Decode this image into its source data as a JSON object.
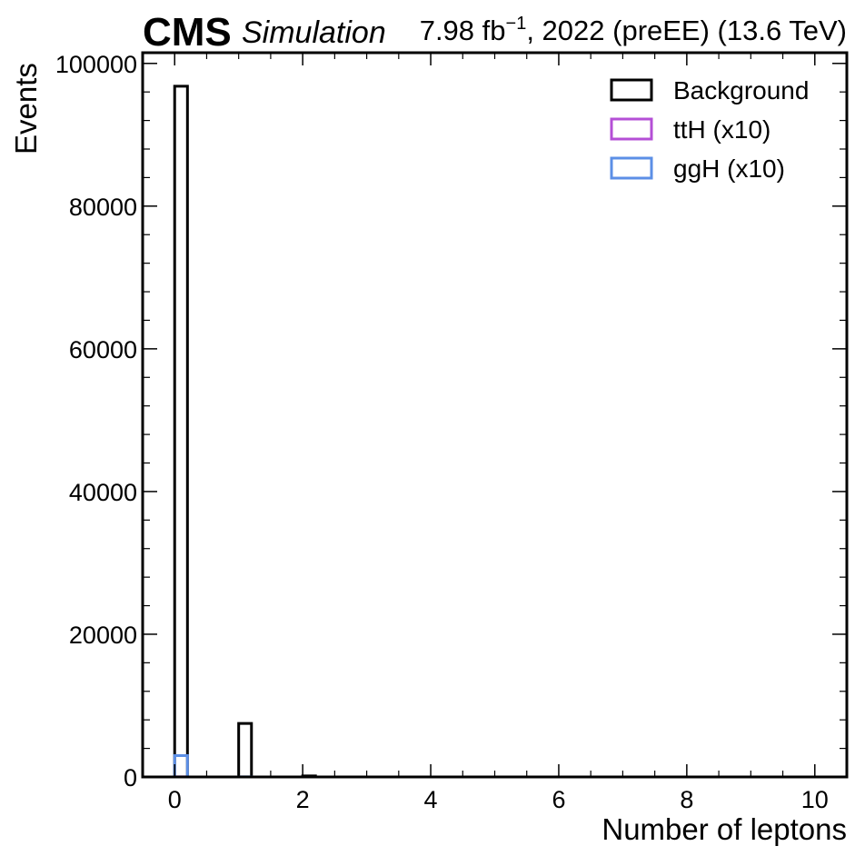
{
  "header": {
    "experiment": "CMS",
    "status": "Simulation",
    "lumi_prefix": "7.98 fb",
    "lumi_exponent": "−1",
    "lumi_suffix": ", 2022 (preEE) (13.6 TeV)"
  },
  "chart_data": {
    "type": "bar",
    "histtype": "step",
    "xlabel": "Number of leptons",
    "ylabel": "Events",
    "xlim": [
      -0.5,
      10.5
    ],
    "ylim": [
      0,
      101500
    ],
    "x_ticks": [
      0,
      2,
      4,
      6,
      8,
      10
    ],
    "y_ticks": [
      0,
      20000,
      40000,
      60000,
      80000,
      100000
    ],
    "x_tick_labels": [
      "0",
      "2",
      "4",
      "6",
      "8",
      "10"
    ],
    "y_tick_labels": [
      "0",
      "20000",
      "40000",
      "60000",
      "80000",
      "100000"
    ],
    "bin_edges": [
      0,
      0.2,
      1,
      1.2,
      2,
      2.2
    ],
    "legend_position": "top-right",
    "series": [
      {
        "name": "Background",
        "color": "#000000",
        "bins": [
          {
            "lo": 0,
            "hi": 0.2,
            "value": 96800
          },
          {
            "lo": 1,
            "hi": 1.2,
            "value": 7500
          },
          {
            "lo": 2,
            "hi": 2.2,
            "value": 150
          }
        ]
      },
      {
        "name": "ttH (x10)",
        "color": "#b44fd6",
        "bins": [
          {
            "lo": 0,
            "hi": 0.2,
            "value": 10
          },
          {
            "lo": 1,
            "hi": 1.2,
            "value": 5
          }
        ]
      },
      {
        "name": "ggH (x10)",
        "color": "#5c8fe6",
        "bins": [
          {
            "lo": 0,
            "hi": 0.2,
            "value": 3000
          },
          {
            "lo": 1,
            "hi": 1.2,
            "value": 20
          }
        ]
      }
    ]
  }
}
